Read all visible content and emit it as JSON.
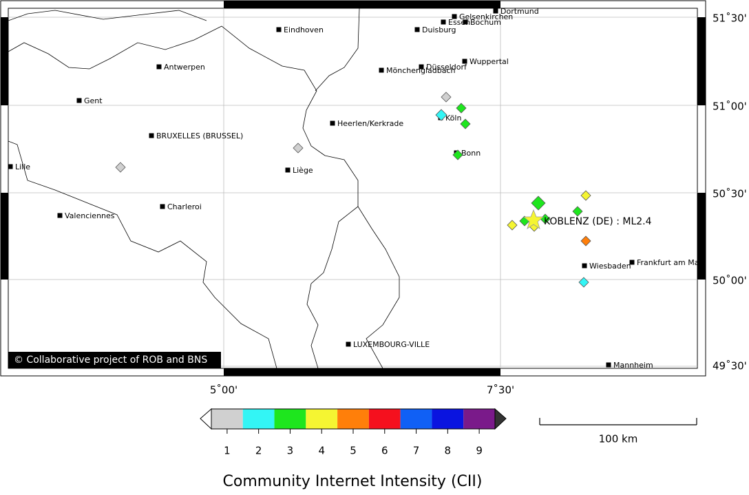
{
  "map": {
    "cities": [
      "Dortmund",
      "Gelsenkirchen",
      "Essen",
      "Bochum",
      "Eindhoven",
      "Duisburg",
      "Antwerpen",
      "Wuppertal",
      "Düsseldorf",
      "Mönchengladbach",
      "Gent",
      "Köln",
      "Heerlen/Kerkrade",
      "BRUXELLES (BRUSSEL)",
      "Bonn",
      "Lille",
      "Liège",
      "Charleroi",
      "Valenciennes",
      "Wiesbaden",
      "Frankfurt am Ma",
      "LUXEMBOURG-VILLE",
      "Mannheim"
    ],
    "epicenter_label": "KOBLENZ (DE) : ML2.4",
    "lat_labels": [
      "51˚30'",
      "51˚00'",
      "50˚30'",
      "50˚00'",
      "49˚30'"
    ],
    "lon_labels": [
      "5˚00'",
      "7˚30'"
    ],
    "copyright": "© Collaborative project of ROB and BNS",
    "scale_label": "100 km",
    "observations": [
      1,
      3,
      2,
      3,
      1,
      3,
      1,
      4,
      3,
      3,
      3,
      3,
      4,
      4,
      5,
      2
    ],
    "colorbar": {
      "title": "Community Internet Intensity (CII)",
      "ticks": [
        1,
        2,
        3,
        4,
        5,
        6,
        7,
        8,
        9
      ],
      "colors": [
        "#d0d0d0",
        "#33f5f5",
        "#1ee61e",
        "#f5f532",
        "#ff7f0a",
        "#f5101e",
        "#1060f5",
        "#0a14e0",
        "#7a1a8a"
      ]
    }
  }
}
